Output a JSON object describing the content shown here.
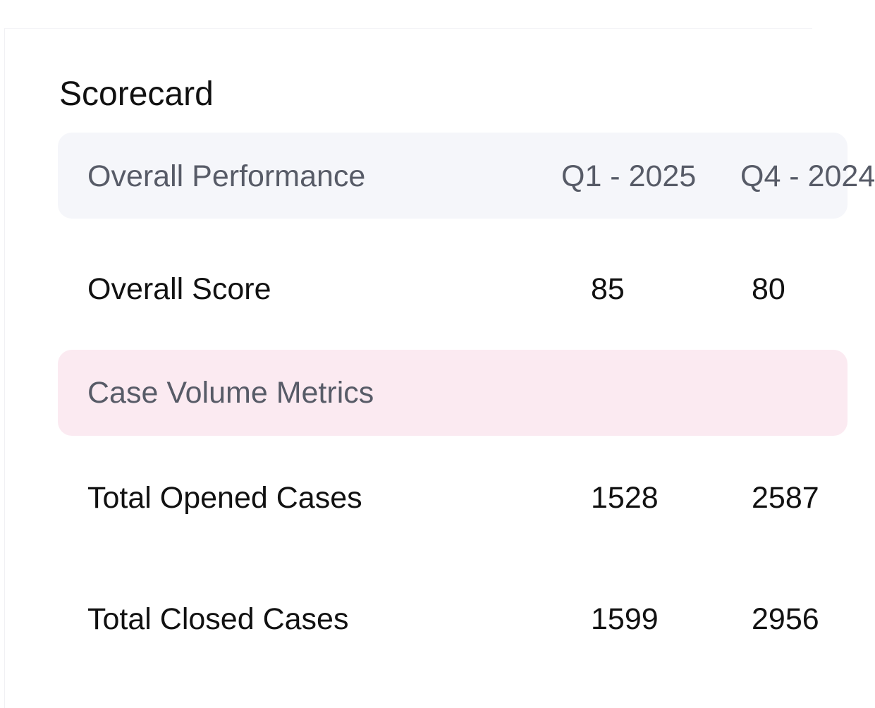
{
  "scorecard": {
    "title": "Scorecard",
    "header": {
      "label": "Overall Performance",
      "columns": [
        "Q1 - 2025",
        "Q4 - 2024"
      ]
    },
    "rows": [
      {
        "label": "Overall Score",
        "values": [
          "85",
          "80"
        ]
      }
    ],
    "sections": [
      {
        "label": "Case Volume Metrics",
        "rows": [
          {
            "label": "Total Opened Cases",
            "values": [
              "1528",
              "2587"
            ]
          },
          {
            "label": "Total Closed Cases",
            "values": [
              "1599",
              "2956"
            ]
          }
        ]
      }
    ]
  }
}
